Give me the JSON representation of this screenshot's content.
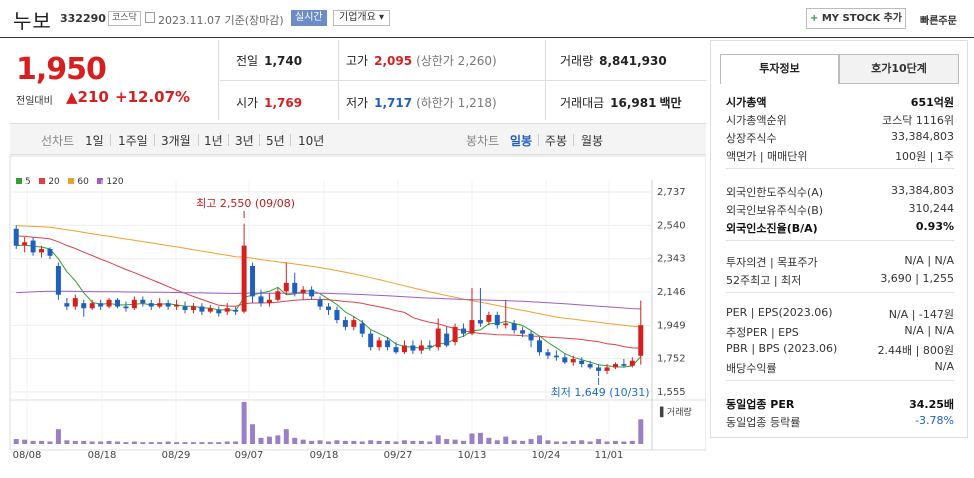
{
  "header": {
    "stock_name": "누보",
    "stock_code": "332290",
    "market_badge": "코스닥",
    "date_text": "2023.11.07 기준(장마감)",
    "realtime_label": "실시간",
    "company_overview_label": "기업개요 ▾",
    "my_stock_label": "MY STOCK 추가",
    "quick_order_label": "빠른주문"
  },
  "price": {
    "current": "1,950",
    "change_label": "전일대비",
    "change_value": "▲210",
    "change_pct": "+12.07%"
  },
  "stats": {
    "prev_close_label": "전일",
    "prev_close": "1,740",
    "high_label": "고가",
    "high": "2,095",
    "upper_limit": "(상한가 2,260)",
    "volume_label": "거래량",
    "volume": "8,841,930",
    "open_label": "시가",
    "open": "1,769",
    "low_label": "저가",
    "low": "1,717",
    "lower_limit": "(하한가 1,218)",
    "amount_label": "거래대금",
    "amount": "16,981",
    "amount_unit": "백만"
  },
  "period_tabs": {
    "line_chart": "선차트",
    "items": [
      "1일",
      "1주일",
      "3개월",
      "1년",
      "3년",
      "5년",
      "10년"
    ],
    "candle_chart": "봉차트",
    "candle_items": [
      "일봉",
      "주봉",
      "월봉"
    ],
    "active_candle": "일봉"
  },
  "legend": [
    {
      "label": "5",
      "color": "#33a02c"
    },
    {
      "label": "20",
      "color": "#e0404a"
    },
    {
      "label": "60",
      "color": "#f0a030"
    },
    {
      "label": "120",
      "color": "#9a5fc6"
    }
  ],
  "chart_data": {
    "type": "candlestick",
    "y_ticks": [
      "2,737",
      "2,540",
      "2,343",
      "2,146",
      "1,949",
      "1,752",
      "1,555"
    ],
    "x_ticks": [
      "08/08",
      "08/18",
      "08/29",
      "09/07",
      "09/18",
      "09/27",
      "10/13",
      "10/24",
      "11/01"
    ],
    "ylim": [
      1555,
      2737
    ],
    "annotations": {
      "high": "최고 2,550 (09/08)",
      "low": "최저 1,649 (10/31)"
    },
    "volume_label": "거래량",
    "candles": [
      [
        2520,
        2420,
        2540,
        2400
      ],
      [
        2420,
        2440,
        2470,
        2380
      ],
      [
        2450,
        2380,
        2470,
        2360
      ],
      [
        2380,
        2400,
        2420,
        2350
      ],
      [
        2400,
        2360,
        2410,
        2340
      ],
      [
        2300,
        2130,
        2320,
        2100
      ],
      [
        2080,
        2060,
        2110,
        2040
      ],
      [
        2060,
        2110,
        2130,
        2040
      ],
      [
        2080,
        2050,
        2100,
        2000
      ],
      [
        2050,
        2080,
        2100,
        2040
      ],
      [
        2080,
        2060,
        2100,
        2040
      ],
      [
        2060,
        2100,
        2110,
        2050
      ],
      [
        2100,
        2060,
        2110,
        2050
      ],
      [
        2060,
        2050,
        2090,
        2030
      ],
      [
        2050,
        2100,
        2120,
        2040
      ],
      [
        2100,
        2080,
        2120,
        2060
      ],
      [
        2080,
        2060,
        2100,
        2040
      ],
      [
        2060,
        2080,
        2110,
        2050
      ],
      [
        2080,
        2060,
        2100,
        2040
      ],
      [
        2060,
        2070,
        2100,
        2040
      ],
      [
        2060,
        2040,
        2090,
        2020
      ],
      [
        2040,
        2060,
        2080,
        2020
      ],
      [
        2060,
        2030,
        2080,
        2010
      ],
      [
        2030,
        2050,
        2070,
        2020
      ],
      [
        2040,
        2020,
        2060,
        2000
      ],
      [
        2030,
        2050,
        2080,
        2010
      ],
      [
        2040,
        2030,
        2060,
        2010
      ],
      [
        2030,
        2420,
        2550,
        2020
      ],
      [
        2300,
        2120,
        2320,
        2080
      ],
      [
        2120,
        2080,
        2160,
        2060
      ],
      [
        2080,
        2100,
        2140,
        2060
      ],
      [
        2100,
        2150,
        2170,
        2090
      ],
      [
        2150,
        2200,
        2320,
        2130
      ],
      [
        2200,
        2140,
        2260,
        2120
      ],
      [
        2140,
        2160,
        2180,
        2100
      ],
      [
        2160,
        2120,
        2180,
        2100
      ],
      [
        2100,
        2060,
        2120,
        2040
      ],
      [
        2060,
        2040,
        2080,
        2010
      ],
      [
        2040,
        1980,
        2060,
        1960
      ],
      [
        1980,
        1940,
        2000,
        1920
      ],
      [
        1940,
        1980,
        2000,
        1920
      ],
      [
        1960,
        1900,
        1980,
        1880
      ],
      [
        1900,
        1820,
        1920,
        1800
      ],
      [
        1820,
        1860,
        1880,
        1800
      ],
      [
        1860,
        1820,
        1880,
        1800
      ],
      [
        1820,
        1790,
        1850,
        1780
      ],
      [
        1790,
        1830,
        1860,
        1780
      ],
      [
        1830,
        1800,
        1860,
        1780
      ],
      [
        1800,
        1830,
        1860,
        1780
      ],
      [
        1830,
        1820,
        1860,
        1800
      ],
      [
        1820,
        1930,
        1990,
        1800
      ],
      [
        1900,
        1830,
        1940,
        1820
      ],
      [
        1850,
        1940,
        1960,
        1830
      ],
      [
        1930,
        1900,
        1960,
        1880
      ],
      [
        1900,
        1980,
        2170,
        1890
      ],
      [
        1980,
        1960,
        2170,
        1940
      ],
      [
        1970,
        2010,
        2030,
        1950
      ],
      [
        2010,
        1950,
        2030,
        1930
      ],
      [
        1950,
        1960,
        2100,
        1930
      ],
      [
        1960,
        1920,
        1980,
        1900
      ],
      [
        1920,
        1900,
        1940,
        1880
      ],
      [
        1900,
        1860,
        1920,
        1820
      ],
      [
        1860,
        1790,
        1880,
        1770
      ],
      [
        1790,
        1770,
        1810,
        1750
      ],
      [
        1770,
        1760,
        1800,
        1740
      ],
      [
        1760,
        1730,
        1780,
        1720
      ],
      [
        1730,
        1750,
        1770,
        1710
      ],
      [
        1740,
        1720,
        1760,
        1700
      ],
      [
        1720,
        1700,
        1740,
        1690
      ],
      [
        1700,
        1680,
        1720,
        1650
      ],
      [
        1680,
        1700,
        1720,
        1660
      ],
      [
        1700,
        1720,
        1730,
        1690
      ],
      [
        1720,
        1710,
        1750,
        1700
      ],
      [
        1710,
        1740,
        1760,
        1700
      ],
      [
        1769,
        1950,
        2095,
        1717
      ]
    ],
    "volumes": [
      8,
      7,
      5,
      5,
      4,
      24,
      6,
      5,
      5,
      4,
      4,
      5,
      4,
      3,
      4,
      3,
      3,
      3,
      4,
      3,
      3,
      3,
      3,
      3,
      3,
      4,
      4,
      68,
      32,
      10,
      12,
      14,
      24,
      10,
      7,
      5,
      6,
      4,
      6,
      5,
      5,
      4,
      6,
      5,
      5,
      4,
      6,
      5,
      5,
      4,
      14,
      8,
      7,
      5,
      17,
      18,
      10,
      6,
      12,
      6,
      5,
      8,
      14,
      6,
      4,
      4,
      5,
      6,
      4,
      8,
      4,
      5,
      4,
      5,
      40
    ]
  },
  "invest_panel": {
    "tab_active": "투자정보",
    "tab_other": "호가10단계",
    "rows1": [
      {
        "label": "시가총액",
        "value": "651억원",
        "bold": true
      },
      {
        "label": "시가총액순위",
        "value": "코스닥 1116위"
      },
      {
        "label": "상장주식수",
        "value": "33,384,803"
      },
      {
        "label": "액면가 | 매매단위",
        "value": "100원 | 1주"
      }
    ],
    "rows2": [
      {
        "label": "외국인한도주식수(A)",
        "value": "33,384,803"
      },
      {
        "label": "외국인보유주식수(B)",
        "value": "310,244"
      },
      {
        "label": "외국인소진율(B/A)",
        "value": "0.93%",
        "bold": true
      }
    ],
    "rows3": [
      {
        "label": "투자의견 | 목표주가",
        "value": "N/A | N/A"
      },
      {
        "label": "52주최고 | 최저",
        "value": "3,690 | 1,255"
      }
    ],
    "rows4": [
      {
        "label": "PER | EPS(2023.06)",
        "value": "N/A | -147원"
      },
      {
        "label": "추정PER | EPS",
        "value": "N/A | N/A"
      },
      {
        "label": "PBR | BPS (2023.06)",
        "value": "2.44배 | 800원"
      },
      {
        "label": "배당수익률",
        "value": "N/A"
      }
    ],
    "rows5": [
      {
        "label": "동일업종 PER",
        "value": "34.25배",
        "bold": true
      },
      {
        "label": "동일업종 등락률",
        "value": "-3.78%",
        "blue": true
      }
    ]
  }
}
